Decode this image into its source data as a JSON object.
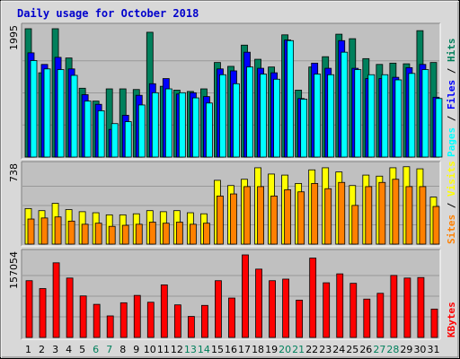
{
  "colors": {
    "frame_bg": "#d8d8d8",
    "panel_bg": "#c0c0c0",
    "title": "#0000cc",
    "hits": "#00805c",
    "files": "#0000ff",
    "pages": "#00ffff",
    "visits": "#ffff00",
    "sites": "#ff8000",
    "kbytes": "#ff0000",
    "weekend": "#00805c",
    "weekday": "#000000"
  },
  "chart_data": {
    "type": "bar",
    "title": "Daily usage for October 2018",
    "days": [
      "1",
      "2",
      "3",
      "4",
      "5",
      "6",
      "7",
      "8",
      "9",
      "10",
      "11",
      "12",
      "13",
      "14",
      "15",
      "16",
      "17",
      "18",
      "19",
      "20",
      "21",
      "22",
      "23",
      "24",
      "25",
      "26",
      "27",
      "28",
      "29",
      "30",
      "31"
    ],
    "weekend_days": [
      "6",
      "7",
      "13",
      "14",
      "20",
      "21",
      "27",
      "28"
    ],
    "panels": [
      {
        "id": "hits-files-pages",
        "ymax_label": "1995",
        "ymax": 1995,
        "legend": [
          {
            "text": "Pages",
            "color": "#00ffff"
          },
          {
            "text": " / ",
            "color": "#000000"
          },
          {
            "text": "Files",
            "color": "#0000ff"
          },
          {
            "text": " / ",
            "color": "#000000"
          },
          {
            "text": "Hits",
            "color": "#00805c"
          }
        ],
        "series": [
          {
            "name": "Hits",
            "color": "#00805c",
            "values": [
              1995,
              1310,
              1995,
              1540,
              1070,
              870,
              1060,
              1060,
              1050,
              1940,
              1100,
              1040,
              1020,
              1060,
              1470,
              1410,
              1740,
              1520,
              1400,
              1900,
              1040,
              1400,
              1560,
              1910,
              1840,
              1530,
              1440,
              1460,
              1450,
              1965,
              1470
            ]
          },
          {
            "name": "Files",
            "color": "#0000ff",
            "values": [
              1620,
              1440,
              1550,
              1370,
              970,
              820,
              430,
              650,
              960,
              1140,
              1220,
              980,
              1000,
              940,
              1370,
              1340,
              1630,
              1380,
              1310,
              1820,
              910,
              1460,
              1380,
              1810,
              1380,
              1220,
              1220,
              1240,
              1390,
              1440,
              930
            ]
          },
          {
            "name": "Pages",
            "color": "#00ffff",
            "values": [
              1500,
              1370,
              1360,
              1270,
              870,
              720,
              520,
              550,
              810,
              1000,
              1060,
              1000,
              920,
              840,
              1280,
              1140,
              1400,
              1290,
              1210,
              1810,
              900,
              1290,
              1280,
              1630,
              1360,
              1280,
              1280,
              1200,
              1300,
              1360,
              910
            ]
          }
        ]
      },
      {
        "id": "visits-sites",
        "ymax_label": "738",
        "ymax": 738,
        "legend": [
          {
            "text": "Sites",
            "color": "#ff8000"
          },
          {
            "text": " / ",
            "color": "#000000"
          },
          {
            "text": "Visits",
            "color": "#ffff00"
          }
        ],
        "series": [
          {
            "name": "Visits",
            "color": "#ffff00",
            "values": [
              340,
              320,
              390,
              330,
              310,
              300,
              280,
              280,
              290,
              320,
              310,
              320,
              300,
              290,
              610,
              560,
              620,
              730,
              670,
              660,
              580,
              710,
              730,
              690,
              560,
              660,
              650,
              730,
              740,
              720,
              450
            ]
          },
          {
            "name": "Sites",
            "color": "#ff8000",
            "values": [
              240,
              250,
              260,
              220,
              190,
              200,
              170,
              180,
              190,
              210,
              200,
              210,
              190,
              200,
              460,
              480,
              550,
              550,
              460,
              520,
              500,
              580,
              530,
              590,
              370,
              550,
              590,
              620,
              550,
              550,
              360
            ]
          }
        ]
      },
      {
        "id": "kbytes",
        "ymax_label": "157054",
        "ymax": 157054,
        "legend": [
          {
            "text": "KBytes",
            "color": "#ff0000"
          }
        ],
        "series": [
          {
            "name": "KBytes",
            "color": "#ff0000",
            "values": [
              108000,
              93000,
              142000,
              113000,
              79000,
              63000,
              41000,
              66000,
              80000,
              67000,
              100000,
              62000,
              40000,
              61000,
              108000,
              75000,
              157054,
              130000,
              108000,
              111000,
              71000,
              151000,
              104000,
              121000,
              103000,
              73000,
              84000,
              118000,
              113000,
              114000,
              54000
            ]
          }
        ]
      }
    ]
  }
}
